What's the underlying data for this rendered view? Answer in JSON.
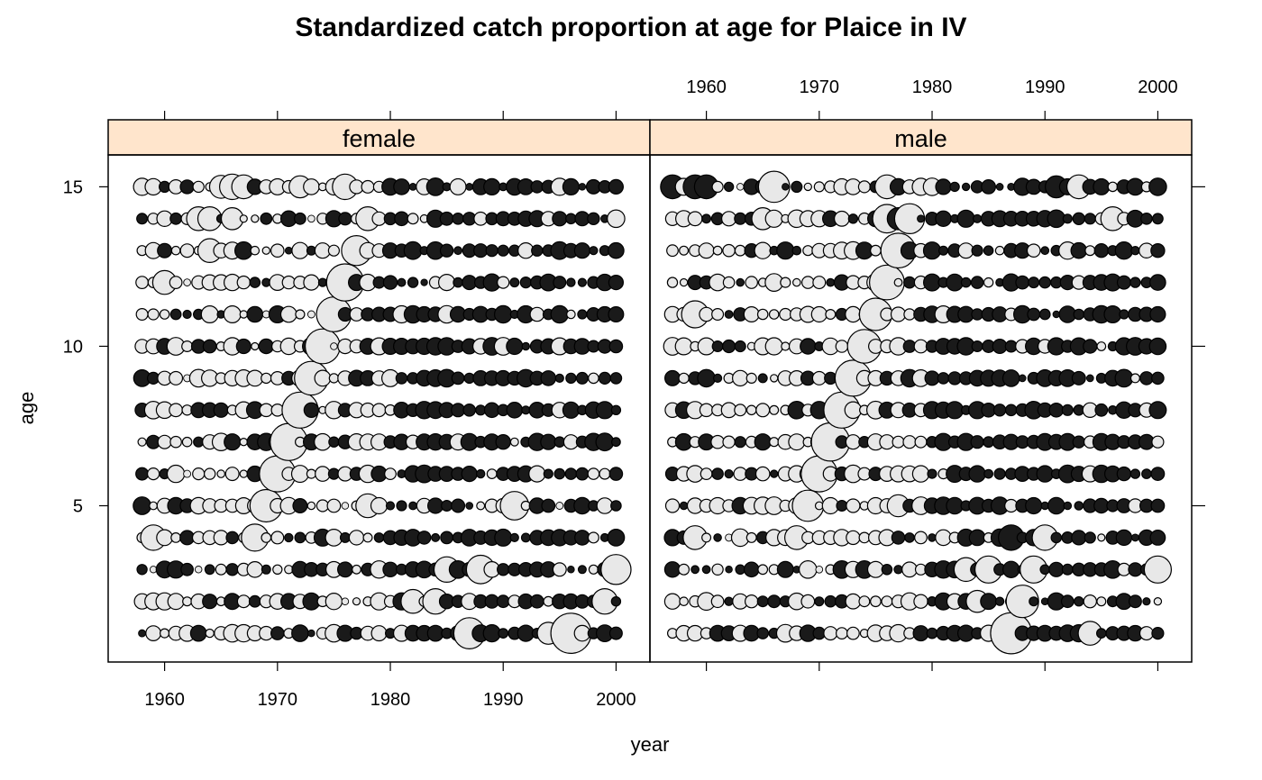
{
  "chart_data": {
    "type": "scatter",
    "subtype": "bubble-panels",
    "title": "Standardized catch proportion at age for Plaice in IV",
    "xlabel": "year",
    "ylabel": "age",
    "xlim": [
      1955,
      2003
    ],
    "ylim": [
      0.1,
      16.0
    ],
    "x_ticks": [
      1960,
      1970,
      1980,
      1990,
      2000
    ],
    "y_ticks": [
      5,
      10,
      15
    ],
    "grid": false,
    "colors": {
      "strip": "#ffe5cc",
      "positive_fill": "#1a1a1a",
      "negative_fill": "#e8e8e8",
      "stroke": "#000000"
    },
    "panels": [
      {
        "name": "female",
        "years": [
          1958,
          2000
        ],
        "ages": [
          1,
          15
        ],
        "bubbles": [
          {
            "year": 1965,
            "age": 15,
            "value": -0.55
          },
          {
            "year": 1966,
            "age": 15,
            "value": -0.7
          },
          {
            "year": 1967,
            "age": 15,
            "value": -0.6
          },
          {
            "year": 1972,
            "age": 15,
            "value": -0.5
          },
          {
            "year": 1976,
            "age": 15,
            "value": -0.7
          },
          {
            "year": 1963,
            "age": 14,
            "value": -0.6
          },
          {
            "year": 1964,
            "age": 14,
            "value": -0.6
          },
          {
            "year": 1966,
            "age": 14,
            "value": -0.5
          },
          {
            "year": 1978,
            "age": 14,
            "value": -0.6
          },
          {
            "year": 1977,
            "age": 13,
            "value": -1.0
          },
          {
            "year": 1964,
            "age": 13,
            "value": -0.6
          },
          {
            "year": 1976,
            "age": 12,
            "value": -1.6
          },
          {
            "year": 1960,
            "age": 12,
            "value": -0.6
          },
          {
            "year": 1975,
            "age": 11,
            "value": -1.4
          },
          {
            "year": 1974,
            "age": 10,
            "value": -1.4
          },
          {
            "year": 1973,
            "age": 9,
            "value": -1.3
          },
          {
            "year": 1972,
            "age": 8,
            "value": -1.5
          },
          {
            "year": 1971,
            "age": 7,
            "value": -1.6
          },
          {
            "year": 1970,
            "age": 6,
            "value": -1.5
          },
          {
            "year": 1969,
            "age": 5,
            "value": -1.2
          },
          {
            "year": 1978,
            "age": 5,
            "value": -0.6
          },
          {
            "year": 1991,
            "age": 5,
            "value": -0.9
          },
          {
            "year": 1959,
            "age": 4,
            "value": -0.7
          },
          {
            "year": 1968,
            "age": 4,
            "value": -0.8
          },
          {
            "year": 1988,
            "age": 3,
            "value": -0.9
          },
          {
            "year": 1985,
            "age": 3,
            "value": -0.7
          },
          {
            "year": 2000,
            "age": 3,
            "value": -1.0
          },
          {
            "year": 1982,
            "age": 2,
            "value": -0.6
          },
          {
            "year": 1984,
            "age": 2,
            "value": -0.7
          },
          {
            "year": 1999,
            "age": 2,
            "value": -0.7
          },
          {
            "year": 1987,
            "age": 1,
            "value": -1.1
          },
          {
            "year": 1996,
            "age": 1,
            "value": -1.9
          },
          {
            "year": 1994,
            "age": 1,
            "value": -0.5
          }
        ]
      },
      {
        "name": "male",
        "years": [
          1957,
          2000
        ],
        "ages": [
          1,
          15
        ],
        "bubbles": [
          {
            "year": 1966,
            "age": 15,
            "value": -1.1
          },
          {
            "year": 1976,
            "age": 15,
            "value": -0.6
          },
          {
            "year": 1993,
            "age": 15,
            "value": -0.6
          },
          {
            "year": 1976,
            "age": 14,
            "value": -0.9
          },
          {
            "year": 1978,
            "age": 14,
            "value": -1.0
          },
          {
            "year": 1965,
            "age": 14,
            "value": -0.5
          },
          {
            "year": 1996,
            "age": 14,
            "value": -0.6
          },
          {
            "year": 1977,
            "age": 13,
            "value": -1.4
          },
          {
            "year": 1976,
            "age": 12,
            "value": -1.4
          },
          {
            "year": 1975,
            "age": 11,
            "value": -1.2
          },
          {
            "year": 1959,
            "age": 11,
            "value": -0.8
          },
          {
            "year": 1974,
            "age": 10,
            "value": -1.3
          },
          {
            "year": 1973,
            "age": 9,
            "value": -1.5
          },
          {
            "year": 1972,
            "age": 8,
            "value": -1.5
          },
          {
            "year": 1971,
            "age": 7,
            "value": -1.7
          },
          {
            "year": 1970,
            "age": 6,
            "value": -1.5
          },
          {
            "year": 1969,
            "age": 5,
            "value": -1.1
          },
          {
            "year": 1977,
            "age": 5,
            "value": -0.5
          },
          {
            "year": 1959,
            "age": 4,
            "value": -0.6
          },
          {
            "year": 1968,
            "age": 4,
            "value": -0.6
          },
          {
            "year": 1990,
            "age": 4,
            "value": -0.7
          },
          {
            "year": 1983,
            "age": 3,
            "value": -0.6
          },
          {
            "year": 1985,
            "age": 3,
            "value": -0.8
          },
          {
            "year": 1989,
            "age": 3,
            "value": -0.8
          },
          {
            "year": 2000,
            "age": 3,
            "value": -0.8
          },
          {
            "year": 1988,
            "age": 2,
            "value": -1.2
          },
          {
            "year": 1984,
            "age": 2,
            "value": -0.5
          },
          {
            "year": 1987,
            "age": 1,
            "value": -2.0
          },
          {
            "year": 1994,
            "age": 1,
            "value": -0.6
          }
        ],
        "positive_highlights": [
          {
            "year": 1957,
            "age": 15,
            "value": 0.6
          },
          {
            "year": 1959,
            "age": 15,
            "value": 0.6
          },
          {
            "year": 1960,
            "age": 15,
            "value": 0.6
          },
          {
            "year": 1991,
            "age": 15,
            "value": 0.5
          },
          {
            "year": 1987,
            "age": 4,
            "value": 0.7
          },
          {
            "year": 1977,
            "age": 14,
            "value": 0.5
          }
        ]
      }
    ]
  }
}
